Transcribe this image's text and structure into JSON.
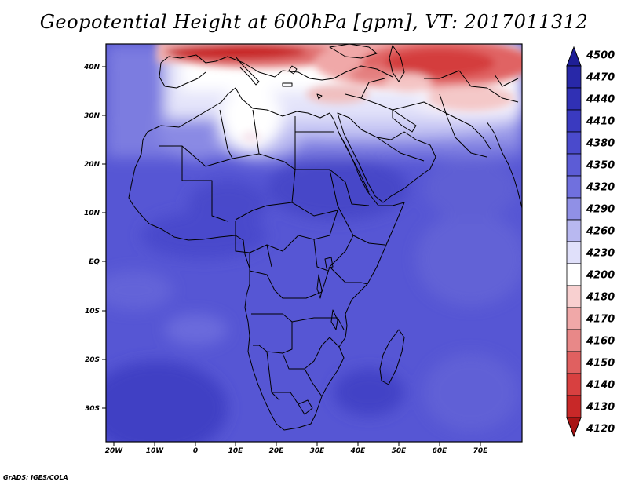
{
  "title": "Geopotential Height at 600hPa [gpm], VT: 2017011312",
  "footer": "GrADS: IGES/COLA",
  "map": {
    "region": "Africa",
    "lon_range": [
      -23,
      80
    ],
    "lat_range": [
      -37,
      45
    ],
    "x_ticks": [
      "20W",
      "10W",
      "0",
      "10E",
      "20E",
      "30E",
      "40E",
      "50E",
      "60E",
      "70E"
    ],
    "y_ticks": [
      "40N",
      "30N",
      "20N",
      "10N",
      "EQ",
      "10S",
      "20S",
      "30S"
    ],
    "field_colors": {
      "deep_blue": "#4040c8",
      "mid_blue": "#5a5ad8",
      "light_blue": "#a8a8ee",
      "white": "#ffffff",
      "pink": "#f0a0a0",
      "red": "#d83030",
      "dark_red": "#b01818"
    }
  },
  "colorbar": {
    "levels": [
      "4500",
      "4470",
      "4440",
      "4410",
      "4380",
      "4350",
      "4320",
      "4290",
      "4260",
      "4230",
      "4200",
      "4180",
      "4170",
      "4160",
      "4150",
      "4140",
      "4130",
      "4120"
    ],
    "colors": [
      "#1e1e96",
      "#2828a8",
      "#3030b4",
      "#3a3ac0",
      "#4a4acc",
      "#5c5cd6",
      "#7070de",
      "#9090e6",
      "#b8b8f0",
      "#e0e0fa",
      "#ffffff",
      "#f8d0d0",
      "#f0a8a8",
      "#e88888",
      "#e06060",
      "#d84040",
      "#c82828",
      "#a81414"
    ]
  }
}
